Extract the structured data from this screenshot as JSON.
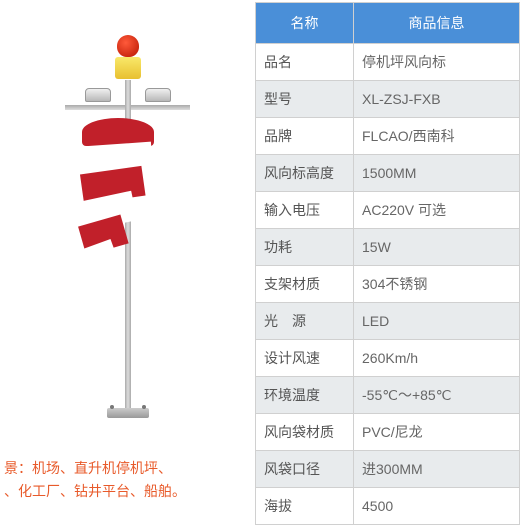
{
  "table": {
    "header_left": "名称",
    "header_right": "商品信息",
    "rows": [
      {
        "label": "品名",
        "value": "停机坪风向标"
      },
      {
        "label": "型号",
        "value": "XL-ZSJ-FXB"
      },
      {
        "label": "品牌",
        "value": "FLCAO/西南科"
      },
      {
        "label": "风向标高度",
        "value": "1500MM"
      },
      {
        "label": "输入电压",
        "value": "AC220V 可选"
      },
      {
        "label": "功耗",
        "value": "15W"
      },
      {
        "label": "支架材质",
        "value": "304不锈钢"
      },
      {
        "label": "光　源",
        "value": "LED"
      },
      {
        "label": "设计风速",
        "value": "260Km/h"
      },
      {
        "label": "环境温度",
        "value": "-55℃～+85℃"
      },
      {
        "label": "风向袋材质",
        "value": "PVC/尼龙"
      },
      {
        "label": "风袋口径",
        "value": "进300MM"
      },
      {
        "label": "海拔",
        "value": "4500"
      }
    ]
  },
  "caption_line1": "景：机场、直升机停机坪、",
  "caption_line2": "、化工厂、钻井平台、船舶。",
  "colors": {
    "header_bg": "#4a8fd8",
    "row_alt_bg": "#e8ebed",
    "border": "#d0d0d0",
    "caption_text": "#e85a2a",
    "windsock_red": "#c1202a"
  }
}
